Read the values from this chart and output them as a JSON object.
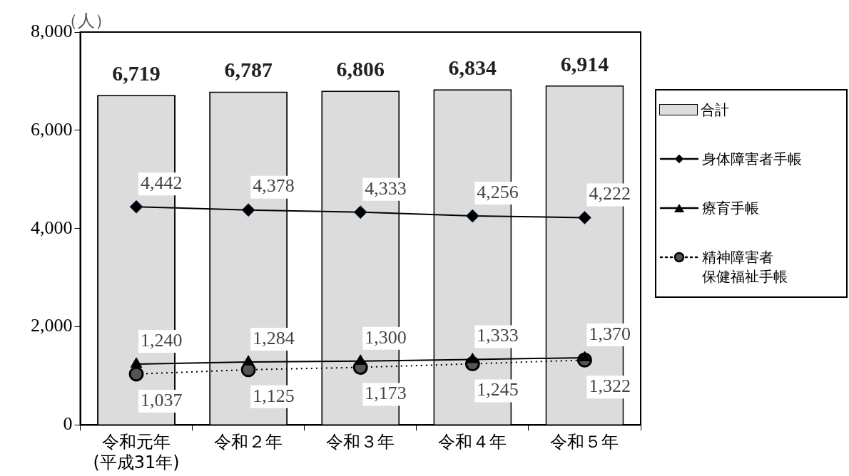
{
  "chart_data": {
    "type": "bar",
    "ylabel": "（人）",
    "categories": [
      "令和元年\n(平成31年)",
      "令和２年",
      "令和３年",
      "令和４年",
      "令和５年"
    ],
    "series": [
      {
        "name": "合計",
        "color": "#dcdcdc",
        "values": [
          6719,
          6787,
          6806,
          6834,
          6914
        ],
        "value_labels": [
          "6,719",
          "6,787",
          "6,806",
          "6,834",
          "6,914"
        ]
      },
      {
        "type": "line",
        "name": "身体障害者手帳",
        "color": "#000000",
        "marker": "diamond",
        "values": [
          4442,
          4378,
          4333,
          4256,
          4222
        ],
        "value_labels": [
          "4,442",
          "4,378",
          "4,333",
          "4,256",
          "4,222"
        ]
      },
      {
        "type": "line",
        "name": "療育手帳",
        "color": "#000000",
        "marker": "triangle",
        "values": [
          1240,
          1284,
          1300,
          1333,
          1370
        ],
        "value_labels": [
          "1,240",
          "1,284",
          "1,300",
          "1,333",
          "1,370"
        ]
      },
      {
        "type": "line",
        "name": "精神障害者保健福祉手帳",
        "color": "#000000",
        "marker": "circle",
        "line_style": "dotted",
        "values": [
          1037,
          1125,
          1173,
          1245,
          1322
        ],
        "value_labels": [
          "1,037",
          "1,125",
          "1,173",
          "1,245",
          "1,322"
        ]
      }
    ],
    "ylim": [
      0,
      8000
    ],
    "yticks": [
      0,
      {
        "value": 2000,
        "label": "2,000"
      },
      {
        "value": 4000,
        "label": "4,000"
      },
      {
        "value": 6000,
        "label": "6,000"
      },
      {
        "value": 8000,
        "label": "8,000"
      }
    ],
    "grid": false,
    "data_labels": true,
    "legend": "right"
  }
}
